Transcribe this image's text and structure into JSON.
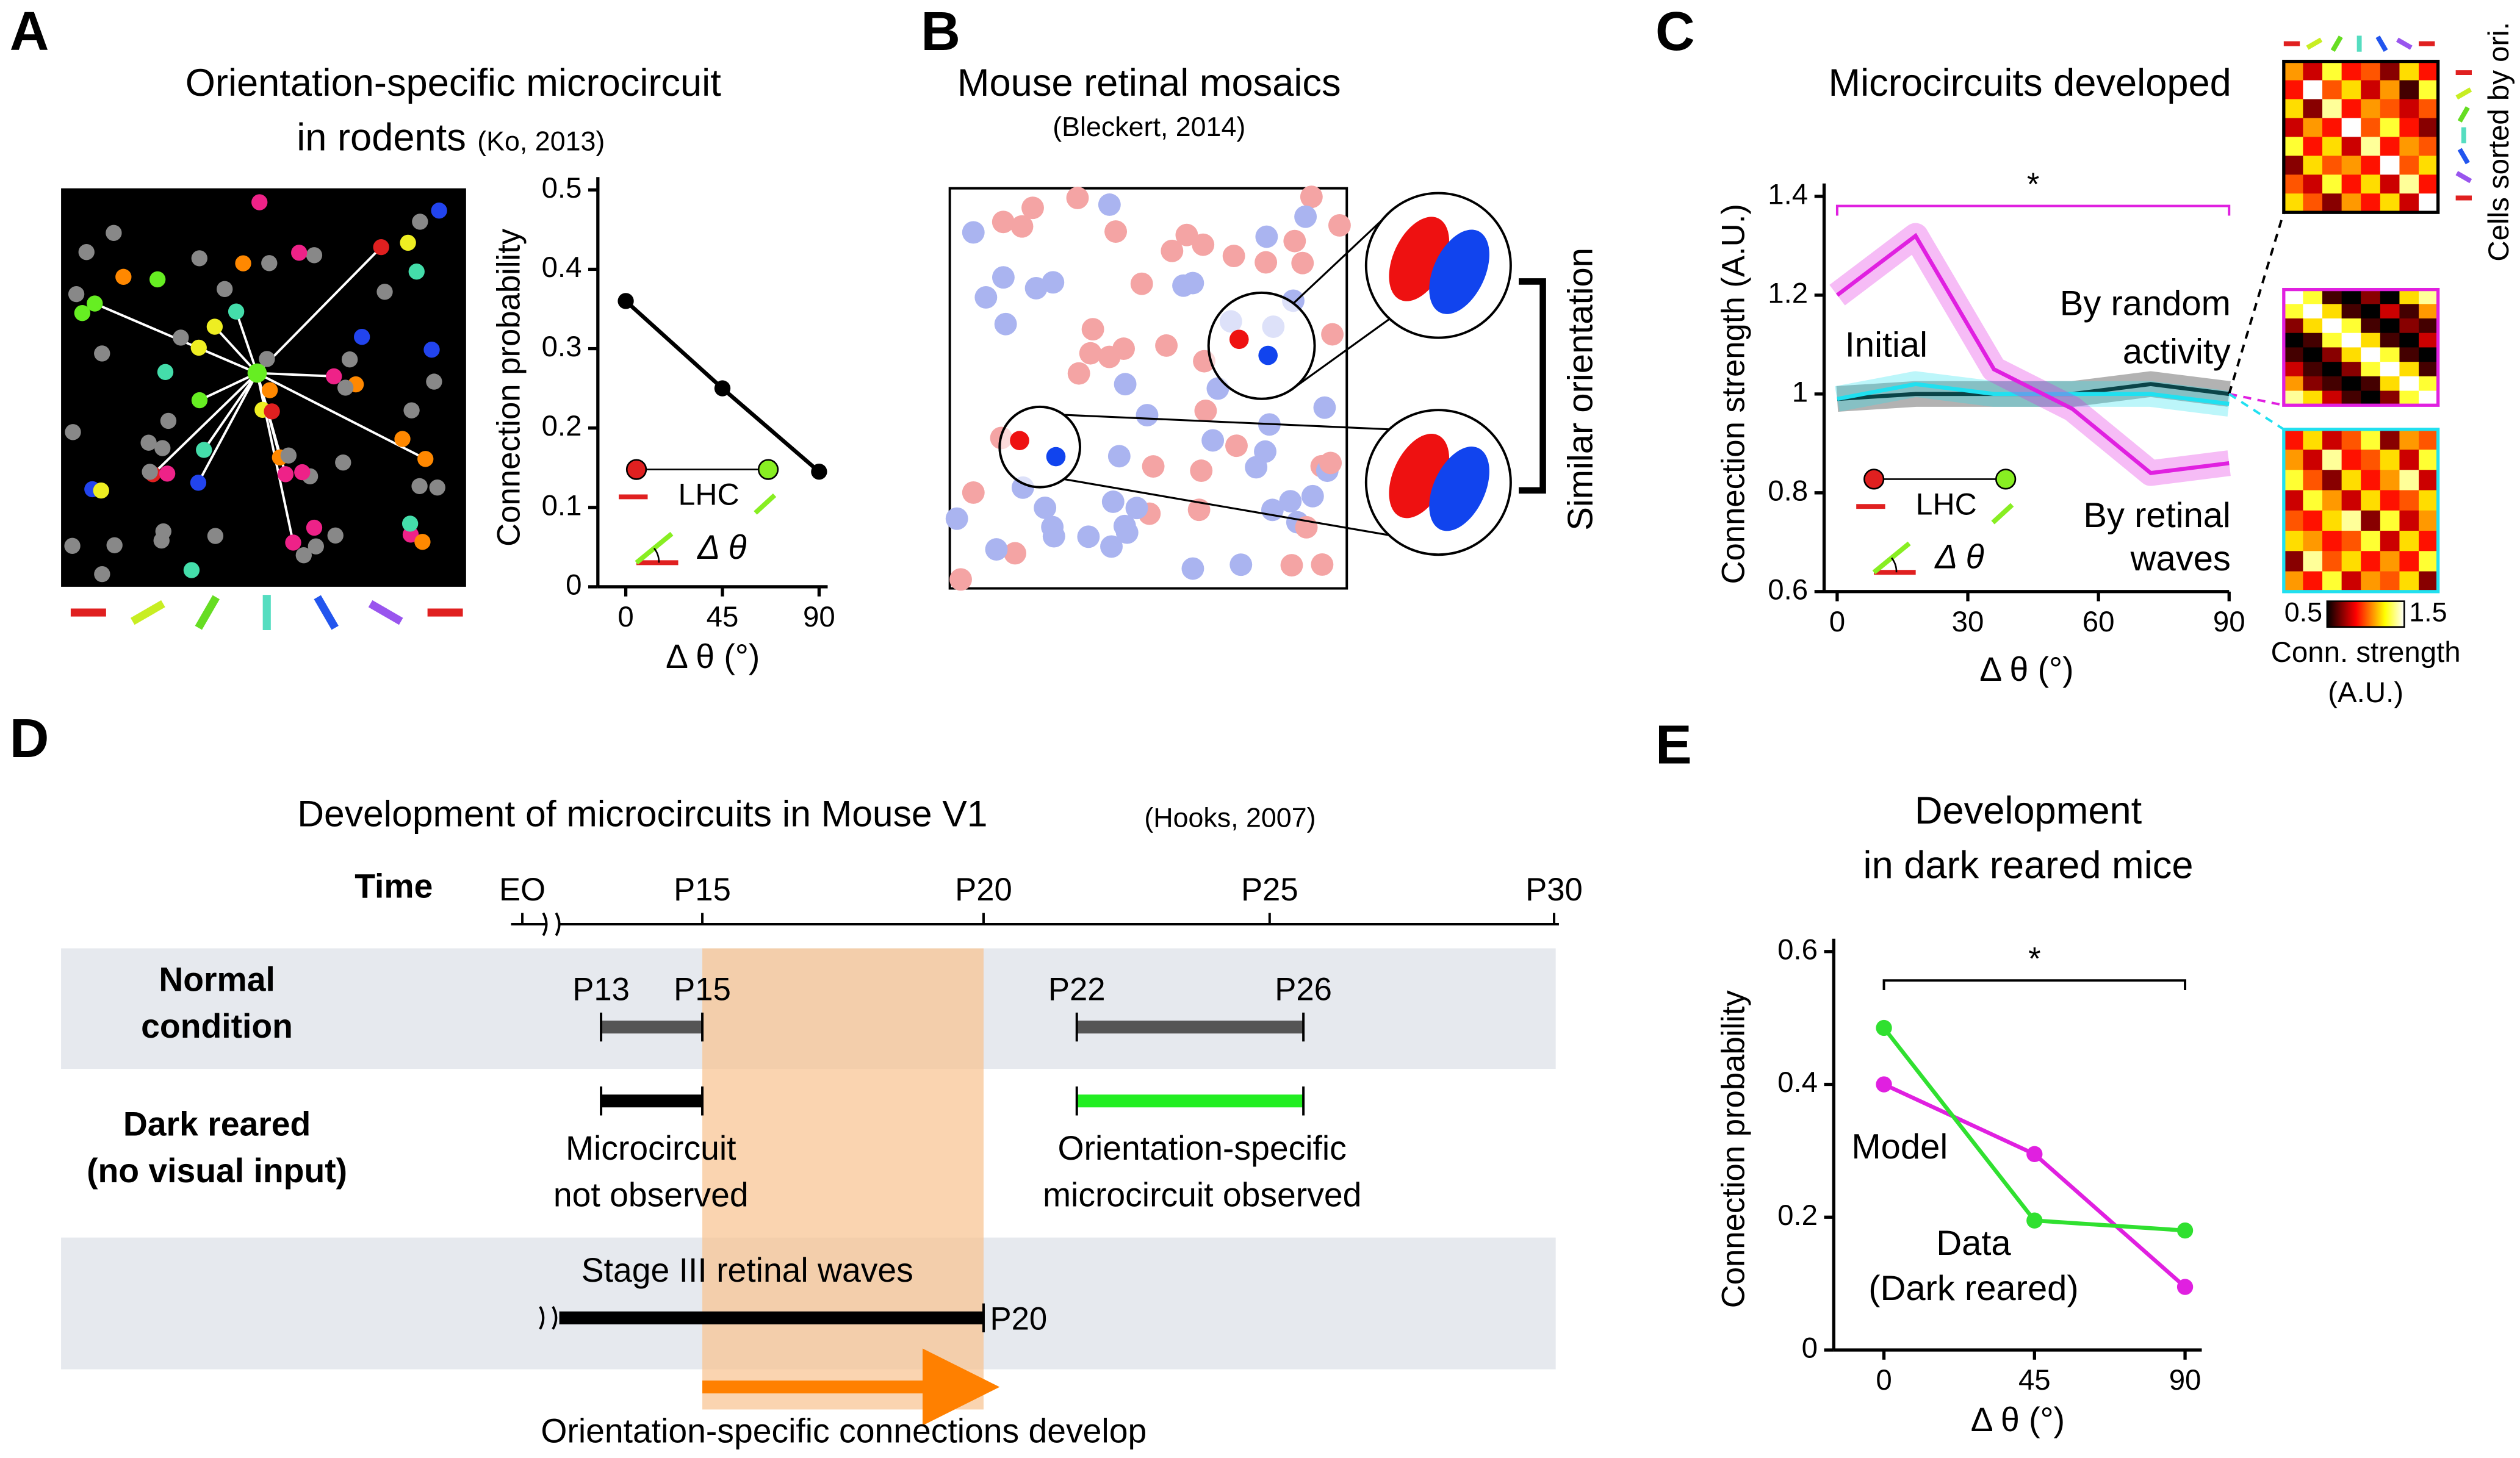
{
  "panel_labels": [
    "A",
    "B",
    "C",
    "D",
    "E"
  ],
  "panels": {
    "A": {
      "title": [
        "Orientation-specific microcircuit",
        "in rodents"
      ],
      "citation": "(Ko, 2013)",
      "inset": {
        "lhc": "LHC",
        "delta": "Δ θ"
      }
    },
    "B": {
      "title": "Mouse retinal mosaics",
      "citation": "(Bleckert, 2014)",
      "bracket_label": "Similar orientation"
    },
    "C": {
      "title": "Microcircuits developed",
      "inset": {
        "lhc": "LHC",
        "delta": "Δ θ"
      }
    },
    "D": {
      "title": "Development of microcircuits in Mouse V1",
      "citation": "(Hooks, 2007)",
      "time_label": "Time",
      "timeline": [
        "EO",
        "P15",
        "P20",
        "P25",
        "P30"
      ],
      "normal": {
        "label": [
          "Normal",
          "condition"
        ],
        "marks": [
          "P13",
          "P15",
          "P22",
          "P26"
        ]
      },
      "dark": {
        "label": [
          "Dark reared",
          "(no visual input)"
        ],
        "notes": [
          [
            "Microcircuit",
            "not observed"
          ],
          [
            "Orientation-specific",
            "microcircuit observed"
          ]
        ]
      },
      "waves": {
        "label": "Stage III retinal waves",
        "end": "P20"
      },
      "arrow_label": "Orientation-specific connections develop"
    },
    "E": {
      "title": [
        "Development",
        "in dark reared mice"
      ]
    }
  },
  "chart_data": [
    {
      "type": "line",
      "markers": true,
      "xlabel": "Δ θ (°)",
      "ylabel": "Connection probability",
      "x": [
        0,
        45,
        90
      ],
      "xlim": [
        -13,
        94
      ],
      "xticks": [
        0,
        45,
        90
      ],
      "ylim": [
        0,
        0.5
      ],
      "yticks": [
        0,
        0.1,
        0.2,
        0.3,
        0.4,
        0.5
      ],
      "series": [
        {
          "color": "#000000",
          "values": [
            0.36,
            0.25,
            0.145
          ]
        }
      ]
    },
    {
      "type": "line",
      "markers": false,
      "xlabel": "Δ θ (°)",
      "ylabel": "Connection strength (A.U.)",
      "x": [
        0,
        18,
        36,
        54,
        72,
        90
      ],
      "xlim": [
        -3,
        90
      ],
      "xticks": [
        0,
        30,
        60,
        90
      ],
      "ylim": [
        0.6,
        1.4
      ],
      "yticks": [
        0.6,
        0.8,
        1,
        1.2,
        1.4
      ],
      "annotation": "*",
      "annotation_color": "#e020e0",
      "series": [
        {
          "label": [
            "Initial"
          ],
          "color": "#000000",
          "values": [
            0.99,
            1.0,
            1.0,
            1.0,
            1.02,
            1.0
          ]
        },
        {
          "label": [
            "By random",
            "activity"
          ],
          "color": "#20e0f0",
          "values": [
            0.99,
            1.02,
            1.0,
            1.0,
            1.0,
            0.98
          ]
        },
        {
          "label": [
            "By retinal",
            "waves"
          ],
          "color": "#e020e0",
          "values": [
            1.2,
            1.32,
            1.05,
            0.97,
            0.84,
            0.86
          ]
        }
      ]
    },
    {
      "type": "line",
      "markers": true,
      "xlabel": "Δ θ (°)",
      "ylabel": "Connection probability",
      "x": [
        0,
        45,
        90
      ],
      "xlim": [
        -15,
        95
      ],
      "xticks": [
        0,
        45,
        90
      ],
      "ylim": [
        0,
        0.6
      ],
      "yticks": [
        0,
        0.2,
        0.4,
        0.6
      ],
      "annotation": "*",
      "annotation_color": "#000000",
      "series": [
        {
          "label": [
            "Model"
          ],
          "color": "#e020e0",
          "values": [
            0.4,
            0.295,
            0.095
          ]
        },
        {
          "label": [
            "Data",
            "(Dark reared)"
          ],
          "color": "#30e030",
          "values": [
            0.485,
            0.195,
            0.18
          ]
        }
      ]
    },
    {
      "type": "heatmap",
      "clim": [
        0.5,
        1.5
      ],
      "colorbar_label": [
        "Conn. strength",
        "(A.U.)"
      ],
      "side_label": "Cells sorted by ori.",
      "frame_colors": [
        "#000000",
        "#e020e0",
        "#20e0f0"
      ],
      "matrices": [
        [
          [
            1.1,
            0.8,
            1.3,
            0.9,
            1.0,
            0.7,
            1.2,
            0.9
          ],
          [
            0.9,
            1.5,
            1.0,
            1.2,
            0.8,
            1.1,
            0.6,
            1.3
          ],
          [
            1.2,
            0.7,
            1.4,
            0.9,
            1.1,
            1.0,
            0.8,
            1.0
          ],
          [
            0.8,
            1.1,
            0.9,
            1.5,
            1.0,
            1.3,
            0.9,
            0.7
          ],
          [
            1.3,
            0.9,
            1.2,
            0.8,
            1.4,
            0.9,
            1.1,
            1.0
          ],
          [
            0.7,
            1.2,
            1.0,
            1.1,
            0.9,
            1.5,
            1.0,
            1.2
          ],
          [
            1.0,
            0.8,
            1.3,
            0.9,
            1.2,
            0.8,
            1.4,
            0.9
          ],
          [
            1.2,
            1.0,
            0.7,
            1.1,
            0.9,
            1.2,
            0.8,
            1.5
          ]
        ],
        [
          [
            1.5,
            1.3,
            0.6,
            0.5,
            0.7,
            0.5,
            1.2,
            1.4
          ],
          [
            1.3,
            1.5,
            1.2,
            0.6,
            0.5,
            0.8,
            0.6,
            1.1
          ],
          [
            0.7,
            1.2,
            1.5,
            1.3,
            0.6,
            0.5,
            0.7,
            0.6
          ],
          [
            0.5,
            0.6,
            1.3,
            1.5,
            1.2,
            0.6,
            0.5,
            0.8
          ],
          [
            0.6,
            0.5,
            0.7,
            1.2,
            1.5,
            1.3,
            0.6,
            0.5
          ],
          [
            0.8,
            0.6,
            0.5,
            0.7,
            1.3,
            1.5,
            1.2,
            0.6
          ],
          [
            1.1,
            0.7,
            0.6,
            0.5,
            0.6,
            1.2,
            1.5,
            1.3
          ],
          [
            1.4,
            1.2,
            0.8,
            0.6,
            0.5,
            0.7,
            1.3,
            1.5
          ]
        ],
        [
          [
            0.9,
            1.2,
            0.8,
            1.0,
            1.3,
            0.7,
            1.1,
            1.0
          ],
          [
            1.1,
            0.8,
            1.4,
            0.9,
            1.0,
            1.2,
            0.8,
            1.3
          ],
          [
            1.3,
            1.0,
            0.7,
            1.2,
            0.9,
            1.1,
            1.4,
            0.8
          ],
          [
            0.8,
            1.3,
            1.1,
            0.8,
            1.2,
            0.9,
            1.0,
            1.2
          ],
          [
            1.0,
            0.9,
            1.2,
            1.4,
            0.7,
            1.3,
            0.8,
            1.1
          ],
          [
            1.2,
            1.1,
            0.9,
            1.0,
            1.3,
            0.8,
            1.2,
            0.9
          ],
          [
            0.7,
            1.4,
            1.0,
            1.2,
            0.9,
            1.1,
            0.9,
            1.3
          ],
          [
            1.1,
            0.9,
            1.3,
            0.8,
            1.1,
            1.0,
            1.2,
            0.7
          ]
        ]
      ]
    }
  ]
}
